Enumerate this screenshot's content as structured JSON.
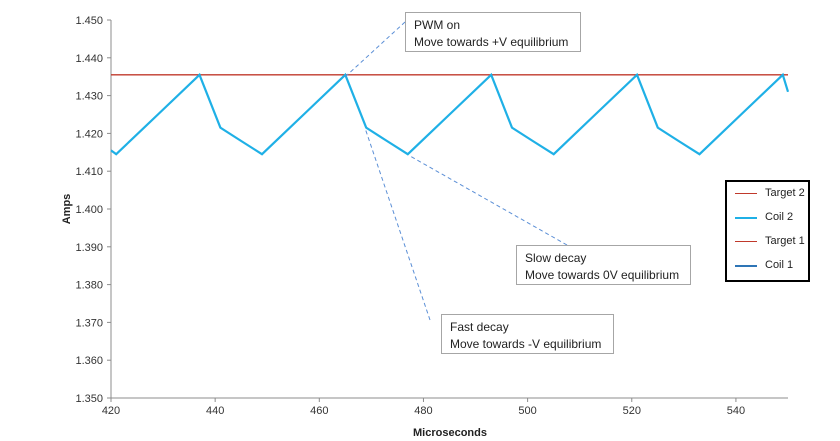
{
  "chart_data": {
    "type": "line",
    "xlabel": "Microseconds",
    "ylabel": "Amps",
    "xlim": [
      420,
      550
    ],
    "ylim": [
      1.35,
      1.45
    ],
    "x_ticks": [
      "420",
      "440",
      "460",
      "480",
      "500",
      "520",
      "540"
    ],
    "y_ticks": [
      "1.350",
      "1.360",
      "1.370",
      "1.380",
      "1.390",
      "1.400",
      "1.410",
      "1.420",
      "1.430",
      "1.440",
      "1.450"
    ],
    "grid": false,
    "legend_position": "right",
    "series": [
      {
        "name": "Coil 2",
        "color": "#1fb0e6",
        "x": [
          420,
          421,
          429,
          437,
          441,
          445,
          449,
          457,
          465,
          469,
          473,
          477,
          485,
          493,
          497,
          501,
          505,
          513,
          521,
          525,
          529,
          533,
          541,
          549,
          550
        ],
        "y": [
          1.4155,
          1.4145,
          1.425,
          1.4355,
          1.4215,
          1.418,
          1.4145,
          1.425,
          1.4355,
          1.4215,
          1.418,
          1.4145,
          1.425,
          1.4355,
          1.4215,
          1.418,
          1.4145,
          1.425,
          1.4355,
          1.4215,
          1.418,
          1.4145,
          1.425,
          1.4355,
          1.431
        ]
      },
      {
        "name": "Target 2",
        "color": "#c0392b",
        "x": [
          420,
          550
        ],
        "y": [
          1.4355,
          1.4355
        ]
      }
    ],
    "legend": [
      {
        "name": "Target 2",
        "color": "#c0392b"
      },
      {
        "name": "Coil 2",
        "color": "#1fb0e6"
      },
      {
        "name": "Target 1",
        "color": "#c0392b"
      },
      {
        "name": "Coil 1",
        "color": "#2e75b6"
      }
    ],
    "annotations": [
      {
        "id": "pwm",
        "line1": "PWM on",
        "line2": "Move towards +V equilibrium"
      },
      {
        "id": "slow",
        "line1": "Slow decay",
        "line2": "Move towards 0V equilibrium"
      },
      {
        "id": "fast",
        "line1": "Fast decay",
        "line2": "Move towards -V equilibrium"
      }
    ]
  }
}
